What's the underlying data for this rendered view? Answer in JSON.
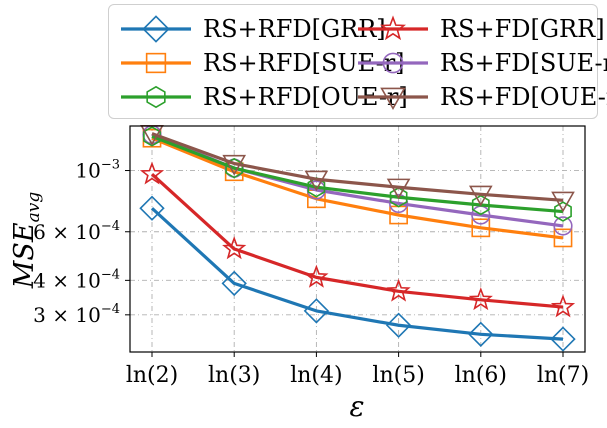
{
  "chart_data": {
    "type": "line",
    "title": "",
    "xlabel": "ε",
    "ylabel": "MSE_avg",
    "yscale": "log",
    "ylim": [
      0.00022,
      0.00145
    ],
    "categories": [
      "ln(2)",
      "ln(3)",
      "ln(4)",
      "ln(5)",
      "ln(6)",
      "ln(7)"
    ],
    "yticks": [
      {
        "value": 0.0003,
        "mantissa": "3 ×",
        "base": "10",
        "exp": "−4"
      },
      {
        "value": 0.0004,
        "mantissa": "4 ×",
        "base": "10",
        "exp": "−4"
      },
      {
        "value": 0.0006,
        "mantissa": "6 ×",
        "base": "10",
        "exp": "−4"
      },
      {
        "value": 0.001,
        "mantissa": "",
        "base": "10",
        "exp": "−3"
      }
    ],
    "grid": true,
    "legend_position": "top",
    "series": [
      {
        "name": "RS+RFD[GRR]",
        "color": "#1f77b4",
        "marker": "diamond",
        "values": [
          0.00073,
          0.00039,
          0.00031,
          0.000275,
          0.000255,
          0.000245
        ]
      },
      {
        "name": "RS+FD[GRR]",
        "color": "#d62728",
        "marker": "star",
        "values": [
          0.00097,
          0.00052,
          0.00041,
          0.000365,
          0.00034,
          0.00032
        ]
      },
      {
        "name": "RS+RFD[SUE-r]",
        "color": "#ff7f0e",
        "marker": "square",
        "values": [
          0.00131,
          0.00099,
          0.00079,
          0.00069,
          0.00062,
          0.00057
        ]
      },
      {
        "name": "RS+FD[SUE-r]",
        "color": "#9467bd",
        "marker": "circle",
        "values": [
          0.00135,
          0.00102,
          0.00085,
          0.00076,
          0.00069,
          0.00063
        ]
      },
      {
        "name": "RS+RFD[OUE-r]",
        "color": "#2ca02c",
        "marker": "hexagon",
        "values": [
          0.00133,
          0.00102,
          0.00087,
          0.0008,
          0.00075,
          0.00071
        ]
      },
      {
        "name": "RS+FD[OUE-r]",
        "color": "#8c564b",
        "marker": "triangle-down",
        "values": [
          0.00136,
          0.00106,
          0.00093,
          0.00087,
          0.00082,
          0.00078
        ]
      }
    ]
  }
}
